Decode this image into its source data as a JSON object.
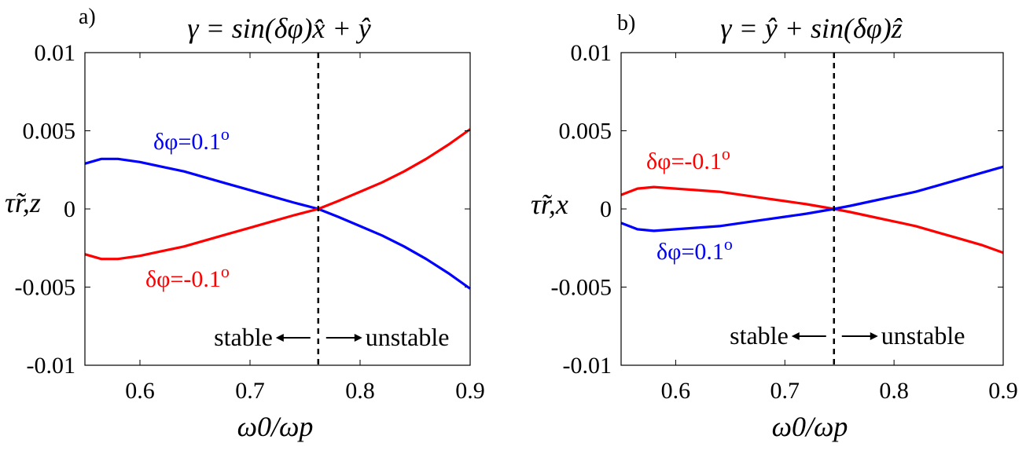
{
  "chart_data": [
    {
      "type": "line",
      "panel_label": "a)",
      "title": "γ = sin(δφ)x̂ + ŷ",
      "xlabel": "ω0/ωp",
      "ylabel": "τ̃r,z",
      "xlim": [
        0.55,
        0.9
      ],
      "ylim": [
        -0.01,
        0.01
      ],
      "xticks": [
        "0.6",
        "0.7",
        "0.8",
        "0.9"
      ],
      "yticks": [
        "0.01",
        "0.005",
        "0",
        "-0.005",
        "-0.01"
      ],
      "grid": false,
      "vline": 0.762,
      "stable_label": "stable",
      "unstable_label": "unstable",
      "series": [
        {
          "name": "δφ=0.1o",
          "label_text": "δφ=0.1",
          "label_sup": "o",
          "color": "#0000ff",
          "x": [
            0.55,
            0.565,
            0.58,
            0.6,
            0.62,
            0.64,
            0.66,
            0.68,
            0.7,
            0.72,
            0.74,
            0.762,
            0.78,
            0.8,
            0.82,
            0.84,
            0.86,
            0.88,
            0.9
          ],
          "y": [
            0.0029,
            0.0032,
            0.0032,
            0.003,
            0.0027,
            0.0024,
            0.002,
            0.0016,
            0.0012,
            0.0008,
            0.0004,
            0.0,
            -0.0005,
            -0.0011,
            -0.0017,
            -0.0024,
            -0.0032,
            -0.0041,
            -0.0051
          ]
        },
        {
          "name": "δφ=-0.1o",
          "label_text": "δφ=-0.1",
          "label_sup": "o",
          "color": "#ff0000",
          "x": [
            0.55,
            0.565,
            0.58,
            0.6,
            0.62,
            0.64,
            0.66,
            0.68,
            0.7,
            0.72,
            0.74,
            0.762,
            0.78,
            0.8,
            0.82,
            0.84,
            0.86,
            0.88,
            0.9
          ],
          "y": [
            -0.0029,
            -0.0032,
            -0.0032,
            -0.003,
            -0.0027,
            -0.0024,
            -0.002,
            -0.0016,
            -0.0012,
            -0.0008,
            -0.0004,
            0.0,
            0.0005,
            0.0011,
            0.0017,
            0.0024,
            0.0032,
            0.0041,
            0.0051
          ]
        }
      ]
    },
    {
      "type": "line",
      "panel_label": "b)",
      "title": "γ = ŷ + sin(δφ)ẑ",
      "xlabel": "ω0/ωp",
      "ylabel": "τ̃r,x",
      "xlim": [
        0.55,
        0.9
      ],
      "ylim": [
        -0.01,
        0.01
      ],
      "xticks": [
        "0.6",
        "0.7",
        "0.8",
        "0.9"
      ],
      "yticks": [
        "0.01",
        "0.005",
        "0",
        "-0.005",
        "-0.01"
      ],
      "grid": false,
      "vline": 0.745,
      "stable_label": "stable",
      "unstable_label": "unstable",
      "series": [
        {
          "name": "δφ=-0.1o",
          "label_text": "δφ=-0.1",
          "label_sup": "o",
          "color": "#ff0000",
          "x": [
            0.55,
            0.565,
            0.58,
            0.6,
            0.62,
            0.64,
            0.66,
            0.68,
            0.7,
            0.72,
            0.745,
            0.76,
            0.78,
            0.8,
            0.82,
            0.84,
            0.86,
            0.88,
            0.9
          ],
          "y": [
            0.0009,
            0.0013,
            0.0014,
            0.0013,
            0.0012,
            0.0011,
            0.0009,
            0.0007,
            0.0005,
            0.0003,
            0.0,
            -0.0002,
            -0.0005,
            -0.0008,
            -0.0011,
            -0.0015,
            -0.0019,
            -0.0023,
            -0.0028
          ]
        },
        {
          "name": "δφ=0.1o",
          "label_text": "δφ=0.1",
          "label_sup": "o",
          "color": "#0000ff",
          "x": [
            0.55,
            0.565,
            0.58,
            0.6,
            0.62,
            0.64,
            0.66,
            0.68,
            0.7,
            0.72,
            0.745,
            0.76,
            0.78,
            0.8,
            0.82,
            0.84,
            0.86,
            0.88,
            0.9
          ],
          "y": [
            -0.0009,
            -0.0013,
            -0.0014,
            -0.0013,
            -0.0012,
            -0.0011,
            -0.0009,
            -0.0007,
            -0.0005,
            -0.0003,
            0.0,
            0.0002,
            0.0005,
            0.0008,
            0.0011,
            0.0015,
            0.0019,
            0.0023,
            0.0027
          ]
        }
      ]
    }
  ]
}
